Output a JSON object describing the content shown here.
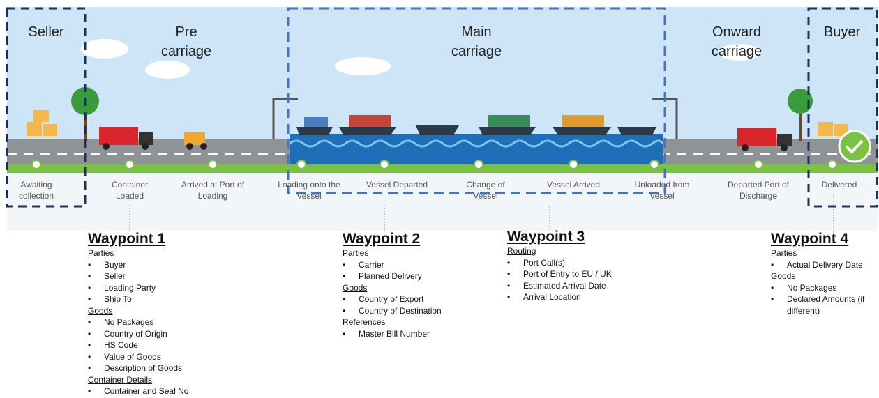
{
  "zones": [
    "Seller",
    "Pre carriage",
    "Main carriage",
    "Onward carriage",
    "Buyer"
  ],
  "stages": [
    "Awaiting collection",
    "Container Loaded",
    "Arrived at Port of Loading",
    "Loading onto the Vessel",
    "Vessel Departed",
    "Change of Vessel",
    "Vessel Arrived",
    "Unloaded from Vessel",
    "Departed Port of Discharge",
    "Delivered"
  ],
  "waypoints": [
    {
      "title": "Waypoint 1",
      "sections": [
        {
          "heading": "Parties",
          "items": [
            "Buyer",
            "Seller",
            "Loading Party",
            "Ship To"
          ]
        },
        {
          "heading": "Goods",
          "items": [
            "No Packages",
            "Country of Origin",
            "HS Code",
            "Value of Goods",
            "Description of Goods"
          ]
        },
        {
          "heading": "Container Details",
          "items": [
            "Container and Seal No"
          ]
        }
      ]
    },
    {
      "title": "Waypoint 2",
      "sections": [
        {
          "heading": "Parties",
          "items": [
            "Carrier",
            "Planned Delivery"
          ]
        },
        {
          "heading": "Goods",
          "items": [
            "Country of Export",
            "Country of Destination"
          ]
        },
        {
          "heading": "References",
          "items": [
            "Master Bill Number"
          ]
        }
      ]
    },
    {
      "title": "Waypoint 3",
      "sections": [
        {
          "heading": "Routing",
          "items": [
            "Port Call(s)",
            "Port of Entry to EU / UK",
            "Estimated Arrival Date",
            "Arrival Location"
          ]
        }
      ]
    },
    {
      "title": "Waypoint 4",
      "sections": [
        {
          "heading": "Parties",
          "items": [
            "Actual Delivery Date"
          ]
        },
        {
          "heading": "Goods",
          "items": [
            "No Packages",
            "Declared Amounts (if different)"
          ]
        }
      ]
    }
  ]
}
